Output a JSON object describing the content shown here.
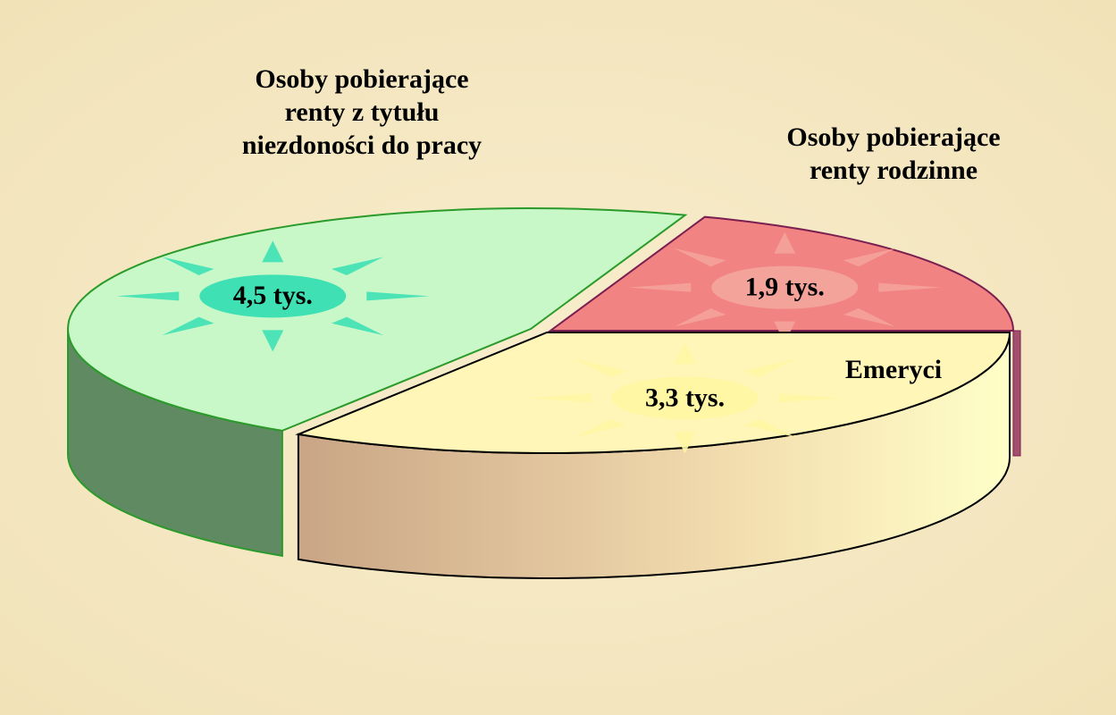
{
  "chart_data": {
    "type": "pie3d",
    "categories": [
      "Osoby pobierające renty z tytułu niezdoności do pracy",
      "Osoby pobierające renty rodzinne",
      "Emeryci"
    ],
    "values": [
      4.5,
      1.9,
      3.3
    ],
    "value_labels": [
      "4,5 tys.",
      "1,9 tys.",
      "3,3 tys."
    ],
    "colors": [
      "#c8f8c8",
      "#f28383",
      "#fff6b8"
    ]
  }
}
